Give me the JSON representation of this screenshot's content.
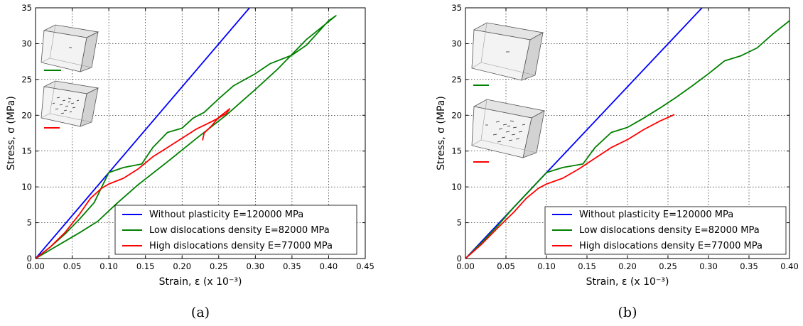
{
  "chart_data": [
    {
      "type": "line",
      "caption": "(a)",
      "xlabel": "Strain, ε (x 10⁻³)",
      "ylabel": "Stress, σ (MPa)",
      "xlim": [
        0,
        0.45
      ],
      "ylim": [
        0,
        35
      ],
      "xticks": [
        "0.00",
        "0.05",
        "0.10",
        "0.15",
        "0.20",
        "0.25",
        "0.30",
        "0.35",
        "0.40",
        "0.45"
      ],
      "yticks": [
        "0",
        "5",
        "10",
        "15",
        "20",
        "25",
        "30",
        "35"
      ],
      "grid": true,
      "legend_position": "lower-right",
      "series": [
        {
          "name": "Without plasticity E=120000 MPa",
          "color": "#0000ff",
          "points": [
            [
              0,
              0
            ],
            [
              0.292,
              35
            ]
          ]
        },
        {
          "name": "Low dislocations density E=82000 MPa",
          "color": "#008000",
          "points": [
            [
              0,
              0
            ],
            [
              0.02,
              1.6
            ],
            [
              0.04,
              3.4
            ],
            [
              0.06,
              5.5
            ],
            [
              0.08,
              7.8
            ],
            [
              0.1,
              12.0
            ],
            [
              0.12,
              12.7
            ],
            [
              0.145,
              13.2
            ],
            [
              0.16,
              15.5
            ],
            [
              0.18,
              17.6
            ],
            [
              0.2,
              18.2
            ],
            [
              0.215,
              19.6
            ],
            [
              0.23,
              20.4
            ],
            [
              0.25,
              22.3
            ],
            [
              0.27,
              24.1
            ],
            [
              0.3,
              25.8
            ],
            [
              0.32,
              27.2
            ],
            [
              0.35,
              28.4
            ],
            [
              0.37,
              29.8
            ],
            [
              0.4,
              33.2
            ],
            [
              0.41,
              33.9
            ],
            [
              0.37,
              30.6
            ],
            [
              0.33,
              26.4
            ],
            [
              0.3,
              23.6
            ],
            [
              0.26,
              20.0
            ],
            [
              0.22,
              16.8
            ],
            [
              0.18,
              13.5
            ],
            [
              0.14,
              10.3
            ],
            [
              0.11,
              7.6
            ],
            [
              0.085,
              5.2
            ],
            [
              0.06,
              3.6
            ],
            [
              0.04,
              2.4
            ],
            [
              0.02,
              1.2
            ],
            [
              0,
              0
            ]
          ]
        },
        {
          "name": "High dislocations density E=77000 MPa",
          "color": "#ff0000",
          "points": [
            [
              0,
              0
            ],
            [
              0.02,
              1.6
            ],
            [
              0.04,
              3.6
            ],
            [
              0.06,
              6.2
            ],
            [
              0.075,
              8.4
            ],
            [
              0.09,
              9.8
            ],
            [
              0.1,
              10.4
            ],
            [
              0.12,
              11.2
            ],
            [
              0.14,
              12.5
            ],
            [
              0.16,
              14.2
            ],
            [
              0.18,
              15.5
            ],
            [
              0.2,
              16.8
            ],
            [
              0.22,
              18.1
            ],
            [
              0.24,
              19.1
            ],
            [
              0.26,
              20.2
            ],
            [
              0.265,
              20.9
            ],
            [
              0.25,
              19.7
            ],
            [
              0.24,
              18.5
            ],
            [
              0.23,
              17.5
            ],
            [
              0.228,
              16.5
            ]
          ]
        }
      ]
    },
    {
      "type": "line",
      "caption": "(b)",
      "xlabel": "Strain, ε (x 10⁻³)",
      "ylabel": "Stress, σ (MPa)",
      "xlim": [
        0,
        0.4
      ],
      "ylim": [
        0,
        35
      ],
      "xticks": [
        "0.00",
        "0.05",
        "0.10",
        "0.15",
        "0.20",
        "0.25",
        "0.30",
        "0.35",
        "0.40"
      ],
      "yticks": [
        "0",
        "5",
        "10",
        "15",
        "20",
        "25",
        "30",
        "35"
      ],
      "grid": true,
      "legend_position": "lower-right",
      "series": [
        {
          "name": "Without plasticity E=120000 MPa",
          "color": "#0000ff",
          "points": [
            [
              0,
              0
            ],
            [
              0.292,
              35
            ]
          ]
        },
        {
          "name": "Low dislocations density E=82000 MPa",
          "color": "#008000",
          "points": [
            [
              0,
              0
            ],
            [
              0.02,
              2.2
            ],
            [
              0.04,
              4.6
            ],
            [
              0.06,
              7.2
            ],
            [
              0.08,
              9.6
            ],
            [
              0.1,
              12.0
            ],
            [
              0.12,
              12.7
            ],
            [
              0.145,
              13.2
            ],
            [
              0.16,
              15.5
            ],
            [
              0.18,
              17.6
            ],
            [
              0.2,
              18.3
            ],
            [
              0.22,
              19.6
            ],
            [
              0.24,
              21.0
            ],
            [
              0.26,
              22.5
            ],
            [
              0.28,
              24.1
            ],
            [
              0.3,
              25.8
            ],
            [
              0.32,
              27.6
            ],
            [
              0.34,
              28.3
            ],
            [
              0.36,
              29.4
            ],
            [
              0.38,
              31.4
            ],
            [
              0.4,
              33.2
            ]
          ]
        },
        {
          "name": "High dislocations density E=77000 MPa",
          "color": "#ff0000",
          "points": [
            [
              0,
              0
            ],
            [
              0.02,
              2.0
            ],
            [
              0.04,
              4.3
            ],
            [
              0.06,
              6.5
            ],
            [
              0.075,
              8.4
            ],
            [
              0.09,
              9.8
            ],
            [
              0.1,
              10.4
            ],
            [
              0.12,
              11.2
            ],
            [
              0.14,
              12.5
            ],
            [
              0.16,
              14.0
            ],
            [
              0.18,
              15.5
            ],
            [
              0.2,
              16.6
            ],
            [
              0.22,
              18.0
            ],
            [
              0.24,
              19.2
            ],
            [
              0.258,
              20.1
            ]
          ]
        }
      ]
    }
  ]
}
